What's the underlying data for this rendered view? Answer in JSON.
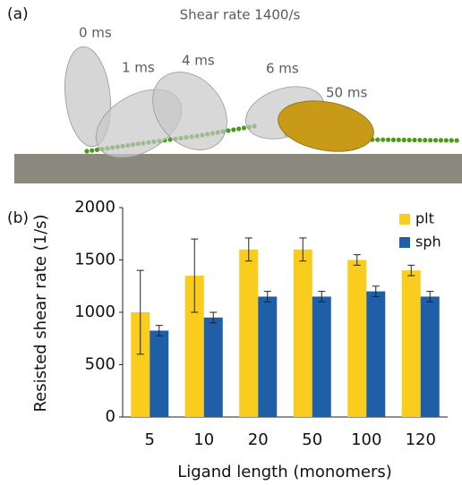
{
  "panel_a": {
    "label": "(a)",
    "title": "Shear rate 1400/s",
    "time_labels": [
      "0 ms",
      "1 ms",
      "4 ms",
      "6 ms",
      "50 ms"
    ]
  },
  "chart_data": {
    "type": "bar",
    "panel_label": "(b)",
    "x_label": "Ligand length (monomers)",
    "y_label": "Resisted shear rate (1/s)",
    "categories": [
      "5",
      "10",
      "20",
      "50",
      "100",
      "120"
    ],
    "series": [
      {
        "name": "plt",
        "color": "#f9cc1e",
        "values": [
          1000,
          1350,
          1600,
          1600,
          1500,
          1400
        ],
        "errors": [
          400,
          350,
          110,
          110,
          50,
          50
        ]
      },
      {
        "name": "sph",
        "color": "#1f5fa8",
        "values": [
          825,
          950,
          1150,
          1150,
          1200,
          1150
        ],
        "errors": [
          50,
          50,
          50,
          50,
          50,
          50
        ]
      }
    ],
    "ylim": [
      0,
      2000
    ],
    "yticks": [
      0,
      500,
      1000,
      1500,
      2000
    ],
    "grid": false,
    "legend": "upper right"
  }
}
